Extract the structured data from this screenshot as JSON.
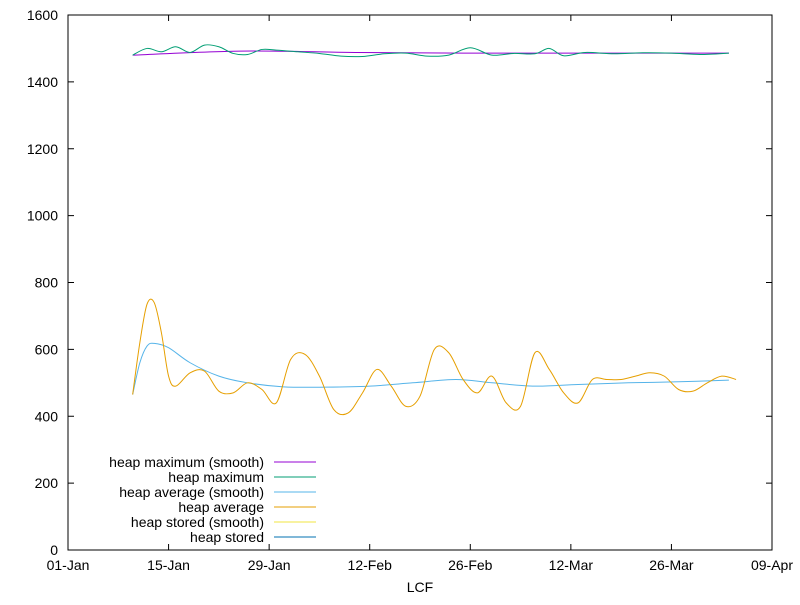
{
  "chart_data": {
    "type": "line",
    "title": "",
    "xlabel": "LCF",
    "ylabel": "",
    "x_ticks": [
      "01-Jan",
      "15-Jan",
      "29-Jan",
      "12-Feb",
      "26-Feb",
      "12-Mar",
      "26-Mar",
      "09-Apr"
    ],
    "xlim": [
      "01-Jan",
      "09-Apr"
    ],
    "ylim": [
      0,
      1600
    ],
    "y_ticks": [
      0,
      200,
      400,
      600,
      800,
      1000,
      1200,
      1400,
      1600
    ],
    "grid": false,
    "legend_position": "bottom-left",
    "series": [
      {
        "name": "heap maximum (smooth)",
        "color": "#9400d3",
        "x": [
          "10-Jan",
          "25-Jan",
          "10-Feb",
          "25-Feb",
          "10-Mar",
          "25-Mar",
          "03-Apr"
        ],
        "values": [
          1480,
          1492,
          1488,
          1486,
          1486,
          1486,
          1486
        ]
      },
      {
        "name": "heap maximum",
        "color": "#009e73",
        "x": [
          "10-Jan",
          "12-Jan",
          "14-Jan",
          "16-Jan",
          "18-Jan",
          "20-Jan",
          "22-Jan",
          "24-Jan",
          "26-Jan",
          "28-Jan",
          "30-Jan",
          "02-Feb",
          "05-Feb",
          "08-Feb",
          "11-Feb",
          "14-Feb",
          "17-Feb",
          "20-Feb",
          "23-Feb",
          "26-Feb",
          "01-Mar",
          "04-Mar",
          "07-Mar",
          "09-Mar",
          "11-Mar",
          "14-Mar",
          "18-Mar",
          "22-Mar",
          "26-Mar",
          "30-Mar",
          "03-Apr"
        ],
        "values": [
          1480,
          1500,
          1490,
          1505,
          1488,
          1510,
          1505,
          1485,
          1482,
          1497,
          1495,
          1490,
          1485,
          1477,
          1476,
          1484,
          1486,
          1477,
          1480,
          1502,
          1480,
          1485,
          1484,
          1500,
          1478,
          1488,
          1484,
          1487,
          1486,
          1482,
          1486
        ]
      },
      {
        "name": "heap average (smooth)",
        "color": "#56b4e9",
        "x": [
          "10-Jan",
          "11-Jan",
          "12-Jan",
          "13-Jan",
          "15-Jan",
          "18-Jan",
          "22-Jan",
          "26-Jan",
          "31-Jan",
          "06-Feb",
          "12-Feb",
          "18-Feb",
          "24-Feb",
          "01-Mar",
          "07-Mar",
          "13-Mar",
          "20-Mar",
          "27-Mar",
          "03-Apr"
        ],
        "values": [
          465,
          560,
          610,
          618,
          605,
          560,
          520,
          500,
          488,
          487,
          490,
          500,
          510,
          500,
          490,
          495,
          500,
          503,
          508
        ]
      },
      {
        "name": "heap average",
        "color": "#e69f00",
        "x": [
          "10-Jan",
          "11-Jan",
          "12-Jan",
          "13-Jan",
          "14-Jan",
          "15-Jan",
          "16-Jan",
          "18-Jan",
          "20-Jan",
          "22-Jan",
          "24-Jan",
          "26-Jan",
          "28-Jan",
          "30-Jan",
          "01-Feb",
          "03-Feb",
          "05-Feb",
          "07-Feb",
          "09-Feb",
          "11-Feb",
          "13-Feb",
          "15-Feb",
          "17-Feb",
          "19-Feb",
          "21-Feb",
          "23-Feb",
          "25-Feb",
          "27-Feb",
          "01-Mar",
          "03-Mar",
          "05-Mar",
          "07-Mar",
          "09-Mar",
          "11-Mar",
          "13-Mar",
          "15-Mar",
          "17-Mar",
          "19-Mar",
          "21-Mar",
          "23-Mar",
          "25-Mar",
          "27-Mar",
          "29-Mar",
          "31-Mar",
          "02-Apr",
          "04-Apr"
        ],
        "values": [
          465,
          620,
          735,
          740,
          650,
          520,
          490,
          530,
          535,
          475,
          470,
          500,
          480,
          440,
          570,
          585,
          520,
          420,
          410,
          470,
          540,
          490,
          430,
          460,
          600,
          590,
          510,
          470,
          520,
          440,
          430,
          590,
          540,
          470,
          440,
          510,
          510,
          510,
          520,
          530,
          520,
          480,
          475,
          500,
          520,
          510
        ]
      },
      {
        "name": "heap stored (smooth)",
        "color": "#f0e442",
        "x": [],
        "values": []
      },
      {
        "name": "heap stored",
        "color": "#0072b2",
        "x": [],
        "values": []
      }
    ]
  }
}
